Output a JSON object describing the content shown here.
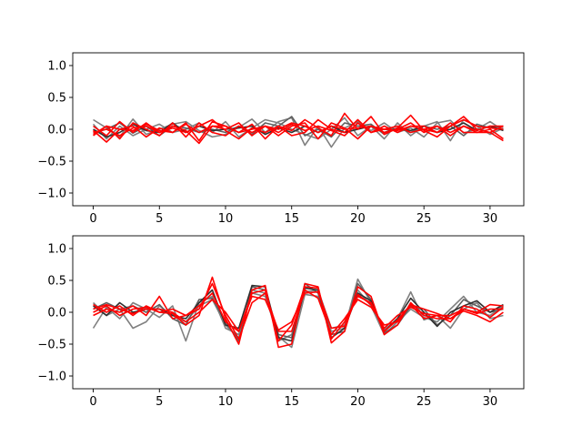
{
  "chart_data": [
    {
      "type": "line",
      "title": "",
      "xlabel": "",
      "ylabel": "",
      "xlim": [
        -1.55,
        32.55
      ],
      "ylim": [
        -1.2,
        1.2
      ],
      "xticks": [
        0,
        5,
        10,
        15,
        20,
        25,
        30
      ],
      "xtick_labels": [
        "0",
        "5",
        "10",
        "15",
        "20",
        "25",
        "30"
      ],
      "yticks": [
        -1.0,
        -0.5,
        0.0,
        0.5,
        1.0
      ],
      "ytick_labels": [
        "−1.0",
        "−0.5",
        "0.0",
        "0.5",
        "1.0"
      ],
      "grid": false,
      "x": [
        0,
        1,
        2,
        3,
        4,
        5,
        6,
        7,
        8,
        9,
        10,
        11,
        12,
        13,
        14,
        15,
        16,
        17,
        18,
        19,
        20,
        21,
        22,
        23,
        24,
        25,
        26,
        27,
        28,
        29,
        30,
        31
      ],
      "series": [
        {
          "color": "#808080",
          "values": [
            0.15,
            0.02,
            -0.12,
            0.16,
            -0.08,
            0.0,
            0.08,
            0.12,
            -0.02,
            -0.12,
            -0.08,
            0.03,
            0.16,
            -0.05,
            0.12,
            0.18,
            -0.25,
            0.05,
            -0.28,
            0.02,
            0.12,
            -0.02,
            0.1,
            -0.05,
            0.02,
            -0.12,
            0.1,
            0.14,
            -0.06,
            0.0,
            0.12,
            -0.02
          ]
        },
        {
          "color": "#808080",
          "values": [
            0.08,
            -0.15,
            0.05,
            -0.1,
            0.0,
            0.08,
            -0.05,
            0.0,
            0.1,
            -0.05,
            0.12,
            -0.12,
            0.02,
            0.15,
            0.1,
            0.0,
            -0.08,
            -0.15,
            0.0,
            0.18,
            -0.1,
            0.05,
            -0.15,
            0.1,
            -0.1,
            0.05,
            0.12,
            -0.18,
            0.15,
            0.05,
            -0.08,
            0.02
          ]
        },
        {
          "color": "#606060",
          "values": [
            -0.05,
            0.0,
            0.1,
            -0.06,
            0.05,
            -0.1,
            0.05,
            0.02,
            -0.05,
            0.0,
            -0.05,
            0.05,
            -0.08,
            0.1,
            0.05,
            0.2,
            -0.1,
            0.0,
            -0.12,
            0.1,
            0.05,
            0.08,
            -0.08,
            0.02,
            -0.05,
            0.05,
            0.0,
            0.05,
            -0.1,
            0.08,
            0.02,
            0.05
          ]
        },
        {
          "color": "#303030",
          "values": [
            0.0,
            -0.12,
            -0.05,
            0.08,
            -0.02,
            -0.05,
            0.1,
            -0.05,
            0.05,
            -0.02,
            0.0,
            0.02,
            0.05,
            -0.08,
            0.02,
            -0.05,
            0.05,
            -0.05,
            0.05,
            -0.05,
            0.0,
            0.05,
            -0.05,
            0.02,
            -0.02,
            0.05,
            -0.05,
            0.0,
            0.1,
            -0.02,
            0.05,
            -0.02
          ]
        },
        {
          "color": "#ff0000",
          "values": [
            -0.08,
            0.05,
            -0.15,
            0.1,
            0.0,
            -0.1,
            0.1,
            -0.12,
            0.1,
            -0.05,
            -0.1,
            0.05,
            -0.05,
            0.05,
            -0.1,
            0.05,
            0.1,
            -0.15,
            0.1,
            0.02,
            -0.15,
            0.05,
            -0.05,
            0.0,
            0.1,
            -0.05,
            0.05,
            -0.1,
            0.05,
            -0.05,
            0.0,
            -0.15
          ]
        },
        {
          "color": "#ff0000",
          "values": [
            -0.02,
            -0.2,
            0.0,
            0.05,
            -0.12,
            0.02,
            -0.05,
            0.1,
            -0.18,
            0.12,
            0.05,
            -0.05,
            0.08,
            -0.15,
            0.05,
            -0.02,
            0.15,
            0.02,
            -0.1,
            0.25,
            0.0,
            0.2,
            -0.08,
            0.02,
            0.22,
            -0.02,
            -0.12,
            0.05,
            0.2,
            0.0,
            -0.05,
            0.05
          ]
        },
        {
          "color": "#ff0000",
          "values": [
            0.05,
            -0.1,
            0.12,
            -0.05,
            0.1,
            -0.05,
            0.02,
            -0.05,
            0.05,
            0.15,
            -0.02,
            -0.15,
            0.02,
            -0.05,
            0.05,
            -0.1,
            -0.05,
            0.15,
            0.0,
            -0.05,
            0.15,
            -0.05,
            0.05,
            -0.05,
            0.05,
            0.05,
            -0.05,
            0.1,
            -0.05,
            -0.05,
            -0.05,
            -0.18
          ]
        },
        {
          "color": "#ff0000",
          "values": [
            -0.05,
            0.0,
            -0.1,
            0.02,
            0.05,
            -0.05,
            0.05,
            -0.02,
            -0.22,
            0.05,
            0.0,
            0.1,
            -0.1,
            0.05,
            -0.05,
            0.08,
            -0.02,
            0.05,
            -0.02,
            -0.1,
            0.1,
            -0.05,
            0.0,
            0.05,
            -0.05,
            0.0,
            -0.05,
            0.05,
            0.15,
            0.05,
            0.02,
            0.0
          ]
        },
        {
          "color": "#ff0000",
          "values": [
            -0.1,
            0.05,
            0.0,
            -0.02,
            0.08,
            -0.02,
            -0.05,
            0.08,
            -0.05,
            0.05,
            0.05,
            -0.05,
            0.0,
            0.05,
            0.0,
            0.1,
            0.05,
            -0.05,
            0.05,
            0.0,
            0.02,
            0.05,
            0.0,
            -0.02,
            0.05,
            0.0,
            0.05,
            -0.05,
            0.05,
            -0.02,
            0.05,
            0.05
          ]
        }
      ]
    },
    {
      "type": "line",
      "title": "",
      "xlabel": "",
      "ylabel": "",
      "xlim": [
        -1.55,
        32.55
      ],
      "ylim": [
        -1.2,
        1.2
      ],
      "xticks": [
        0,
        5,
        10,
        15,
        20,
        25,
        30
      ],
      "xtick_labels": [
        "0",
        "5",
        "10",
        "15",
        "20",
        "25",
        "30"
      ],
      "yticks": [
        -1.0,
        -0.5,
        0.0,
        0.5,
        1.0
      ],
      "ytick_labels": [
        "−1.0",
        "−0.5",
        "0.0",
        "0.5",
        "1.0"
      ],
      "grid": false,
      "x": [
        0,
        1,
        2,
        3,
        4,
        5,
        6,
        7,
        8,
        9,
        10,
        11,
        12,
        13,
        14,
        15,
        16,
        17,
        18,
        19,
        20,
        21,
        22,
        23,
        24,
        25,
        26,
        27,
        28,
        29,
        30,
        31
      ],
      "series": [
        {
          "color": "#808080",
          "values": [
            -0.25,
            0.08,
            -0.1,
            0.15,
            0.05,
            -0.08,
            0.1,
            -0.45,
            0.15,
            0.25,
            -0.25,
            -0.35,
            0.3,
            0.25,
            -0.38,
            -0.55,
            0.28,
            0.25,
            -0.3,
            -0.25,
            0.52,
            0.15,
            -0.28,
            -0.1,
            0.32,
            -0.12,
            -0.05,
            -0.25,
            0.05,
            0.15,
            -0.1,
            -0.05
          ]
        },
        {
          "color": "#808080",
          "values": [
            0.15,
            -0.05,
            0.05,
            -0.25,
            -0.15,
            0.1,
            -0.05,
            -0.15,
            0.1,
            0.2,
            -0.2,
            -0.4,
            0.35,
            0.3,
            -0.45,
            -0.35,
            0.32,
            0.35,
            -0.25,
            -0.2,
            0.35,
            0.1,
            -0.35,
            -0.15,
            0.05,
            -0.08,
            -0.15,
            0.05,
            0.25,
            0.0,
            -0.05,
            0.1
          ]
        },
        {
          "color": "#606060",
          "values": [
            0.05,
            0.15,
            0.05,
            0.1,
            0.0,
            0.12,
            -0.1,
            -0.2,
            0.2,
            0.22,
            -0.15,
            -0.45,
            0.4,
            0.35,
            -0.35,
            -0.4,
            0.45,
            0.3,
            -0.35,
            -0.3,
            0.45,
            0.2,
            -0.32,
            -0.2,
            0.1,
            0.05,
            -0.2,
            -0.05,
            0.2,
            0.1,
            0.0,
            0.05
          ]
        },
        {
          "color": "#303030",
          "values": [
            0.1,
            -0.05,
            0.15,
            0.0,
            0.05,
            0.05,
            -0.05,
            -0.1,
            0.15,
            0.35,
            -0.2,
            -0.25,
            0.42,
            0.4,
            -0.4,
            -0.45,
            0.38,
            0.35,
            -0.4,
            -0.25,
            0.3,
            0.18,
            -0.3,
            -0.1,
            0.22,
            0.0,
            -0.22,
            0.0,
            0.1,
            0.18,
            0.0,
            0.12
          ]
        },
        {
          "color": "#ff0000",
          "values": [
            0.0,
            0.1,
            -0.05,
            0.05,
            0.08,
            0.0,
            -0.02,
            -0.2,
            -0.05,
            0.55,
            -0.1,
            -0.5,
            0.35,
            0.42,
            -0.55,
            -0.5,
            0.45,
            0.4,
            -0.48,
            -0.3,
            0.4,
            0.25,
            -0.35,
            -0.2,
            0.15,
            -0.05,
            -0.1,
            -0.1,
            0.05,
            0.0,
            0.12,
            0.1
          ]
        },
        {
          "color": "#ff0000",
          "values": [
            0.12,
            0.0,
            0.1,
            -0.05,
            0.1,
            0.0,
            0.05,
            -0.05,
            0.1,
            0.3,
            -0.15,
            -0.3,
            0.3,
            0.35,
            -0.45,
            -0.2,
            0.4,
            0.38,
            -0.42,
            -0.15,
            0.25,
            0.15,
            -0.3,
            -0.12,
            0.12,
            -0.1,
            -0.05,
            -0.15,
            0.1,
            0.05,
            -0.08,
            0.08
          ]
        },
        {
          "color": "#ff0000",
          "values": [
            -0.05,
            0.05,
            0.0,
            0.1,
            -0.05,
            0.25,
            -0.1,
            -0.05,
            0.05,
            0.45,
            -0.05,
            -0.42,
            0.15,
            0.3,
            -0.3,
            -0.3,
            0.35,
            0.22,
            -0.35,
            -0.1,
            0.2,
            0.08,
            -0.2,
            -0.15,
            0.12,
            0.05,
            -0.02,
            -0.1,
            0.02,
            -0.05,
            -0.15,
            0.0
          ]
        },
        {
          "color": "#ff0000",
          "values": [
            0.05,
            0.12,
            0.05,
            -0.02,
            0.05,
            0.05,
            0.0,
            -0.15,
            0.0,
            0.2,
            0.0,
            -0.3,
            0.25,
            0.2,
            -0.28,
            -0.15,
            0.3,
            0.32,
            -0.25,
            -0.22,
            0.28,
            0.12,
            -0.25,
            -0.05,
            0.08,
            -0.02,
            -0.05,
            -0.05,
            0.05,
            -0.02,
            0.05,
            0.05
          ]
        }
      ]
    }
  ]
}
